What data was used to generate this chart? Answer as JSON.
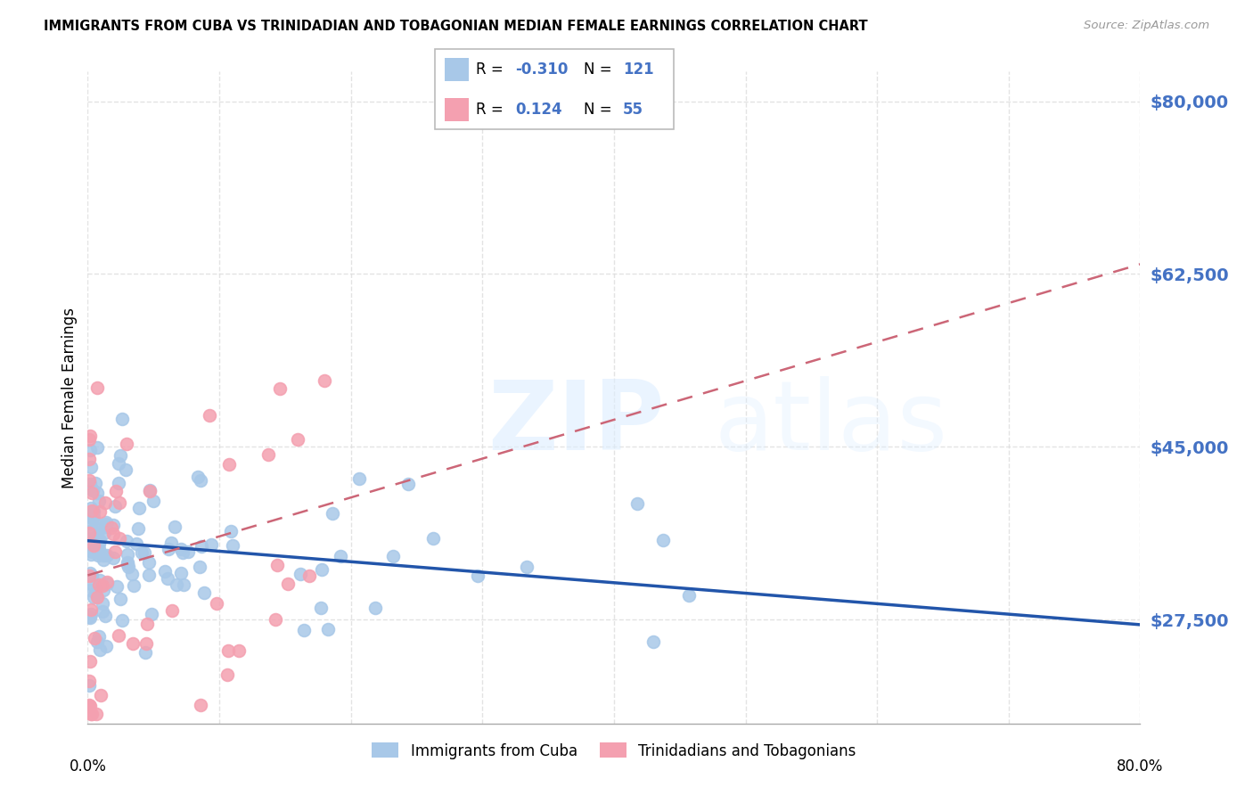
{
  "title": "IMMIGRANTS FROM CUBA VS TRINIDADIAN AND TOBAGONIAN MEDIAN FEMALE EARNINGS CORRELATION CHART",
  "source": "Source: ZipAtlas.com",
  "ylabel": "Median Female Earnings",
  "legend_label1": "Immigrants from Cuba",
  "legend_label2": "Trinidadians and Tobagonians",
  "R1": -0.31,
  "N1": 121,
  "R2": 0.124,
  "N2": 55,
  "color_blue": "#A8C8E8",
  "color_pink": "#F4A0B0",
  "color_blue_dark": "#2255AA",
  "color_pink_dark": "#CC6677",
  "color_axis_labels": "#4472C4",
  "color_grid": "#DDDDDD",
  "xmin": 0.0,
  "xmax": 0.8,
  "ymin": 17000,
  "ymax": 83000,
  "yticks": [
    27500,
    45000,
    62500,
    80000
  ],
  "ytick_labels": [
    "$27,500",
    "$45,000",
    "$62,500",
    "$80,000"
  ],
  "blue_trend_x0": 0.0,
  "blue_trend_y0": 35500,
  "blue_trend_x1": 0.8,
  "blue_trend_y1": 27000,
  "pink_trend_x0": 0.0,
  "pink_trend_y0": 32000,
  "pink_trend_x1": 0.8,
  "pink_trend_y1": 63500
}
